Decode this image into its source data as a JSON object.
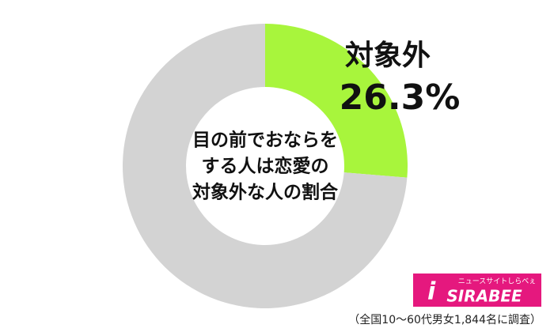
{
  "chart_data": {
    "type": "donut",
    "categories": [
      "対象外",
      null
    ],
    "values": [
      26.3,
      73.7
    ],
    "value_labels": [
      "26.3%",
      null
    ],
    "colors": [
      "#a8f53c",
      "#d3d3d3"
    ],
    "center_label": [
      "目の前でおならを",
      "する人は恋愛の",
      "対象外な人の割合"
    ],
    "footnote": "（全国10～60代男女1,844名に調査）",
    "logo": {
      "name": "SIRABEE",
      "tagline": "ニュースサイトしらべぇ"
    }
  }
}
